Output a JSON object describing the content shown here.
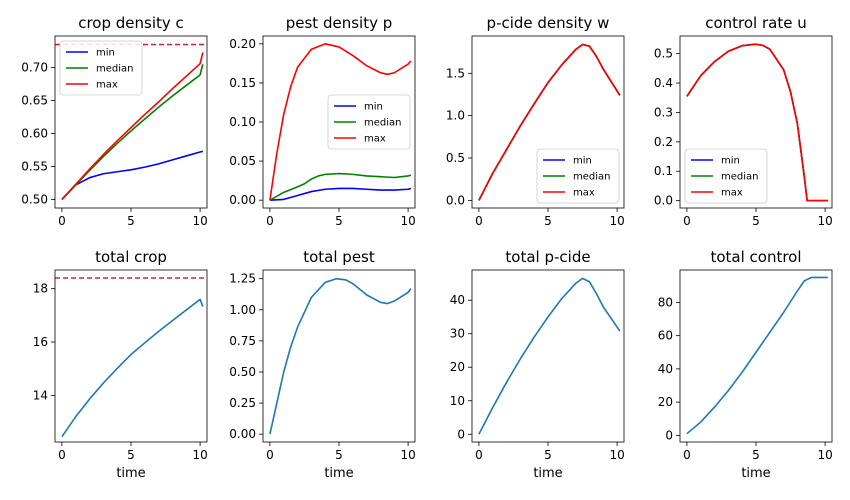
{
  "chart_data": [
    {
      "type": "line",
      "title": "crop density c",
      "xlabel": "",
      "xlim": [
        -0.5,
        10.5
      ],
      "ylim": [
        0.487,
        0.748
      ],
      "xticks": [
        0,
        5,
        10
      ],
      "yticks": [
        0.5,
        0.55,
        0.6,
        0.65,
        0.7
      ],
      "ytick_labels": [
        "0.50",
        "0.55",
        "0.60",
        "0.65",
        "0.70"
      ],
      "legend": "upper-left",
      "hline": {
        "y": 0.735,
        "color": "#d62728",
        "style": "dashed"
      },
      "series": [
        {
          "name": "min",
          "color": "#0000ff",
          "x": [
            0,
            1,
            2,
            3,
            4,
            5,
            6,
            7,
            8,
            9,
            10,
            10.2
          ],
          "y": [
            0.5,
            0.522,
            0.533,
            0.539,
            0.542,
            0.545,
            0.549,
            0.554,
            0.56,
            0.566,
            0.572,
            0.573
          ]
        },
        {
          "name": "median",
          "color": "#008000",
          "x": [
            0,
            1,
            2,
            3,
            4,
            5,
            6,
            7,
            8,
            9,
            10,
            10.2
          ],
          "y": [
            0.5,
            0.522,
            0.544,
            0.565,
            0.585,
            0.604,
            0.622,
            0.64,
            0.657,
            0.673,
            0.689,
            0.705
          ]
        },
        {
          "name": "max",
          "color": "#ff0000",
          "x": [
            0,
            1,
            2,
            3,
            4,
            5,
            6,
            7,
            8,
            9,
            10,
            10.2
          ],
          "y": [
            0.5,
            0.523,
            0.546,
            0.568,
            0.589,
            0.609,
            0.629,
            0.648,
            0.668,
            0.687,
            0.706,
            0.723
          ]
        }
      ]
    },
    {
      "type": "line",
      "title": "pest density p",
      "xlabel": "",
      "xlim": [
        -0.5,
        10.5
      ],
      "ylim": [
        -0.01,
        0.21
      ],
      "xticks": [
        0,
        5,
        10
      ],
      "yticks": [
        0.0,
        0.05,
        0.1,
        0.15,
        0.2
      ],
      "ytick_labels": [
        "0.00",
        "0.05",
        "0.10",
        "0.15",
        "0.20"
      ],
      "legend": "center-right",
      "series": [
        {
          "name": "min",
          "color": "#0000ff",
          "x": [
            0,
            1,
            2,
            3,
            4,
            5,
            6,
            7,
            8,
            9,
            10,
            10.2
          ],
          "y": [
            0,
            0.001,
            0.006,
            0.011,
            0.014,
            0.015,
            0.015,
            0.014,
            0.013,
            0.013,
            0.014,
            0.015
          ]
        },
        {
          "name": "median",
          "color": "#008000",
          "x": [
            0,
            1,
            2,
            2.5,
            3,
            3.5,
            4,
            5,
            6,
            7,
            8,
            9,
            10,
            10.2
          ],
          "y": [
            0,
            0.01,
            0.017,
            0.021,
            0.027,
            0.031,
            0.033,
            0.034,
            0.033,
            0.031,
            0.03,
            0.029,
            0.031,
            0.032
          ]
        },
        {
          "name": "max",
          "color": "#ff0000",
          "x": [
            0,
            0.5,
            1,
            1.5,
            2,
            3,
            4,
            5,
            6,
            7,
            8,
            8.5,
            9,
            10,
            10.2
          ],
          "y": [
            0,
            0.06,
            0.11,
            0.145,
            0.17,
            0.193,
            0.2,
            0.196,
            0.185,
            0.172,
            0.163,
            0.161,
            0.163,
            0.174,
            0.178
          ]
        }
      ]
    },
    {
      "type": "line",
      "title": "p-cide density w",
      "xlabel": "",
      "xlim": [
        -0.5,
        10.5
      ],
      "ylim": [
        -0.09,
        1.94
      ],
      "xticks": [
        0,
        5,
        10
      ],
      "yticks": [
        0.0,
        0.5,
        1.0,
        1.5
      ],
      "ytick_labels": [
        "0.0",
        "0.5",
        "1.0",
        "1.5"
      ],
      "legend": "lower-right",
      "series": [
        {
          "name": "min",
          "color": "#0000ff",
          "x": [
            0,
            1,
            2,
            3,
            4,
            5,
            6,
            7,
            7.5,
            8,
            8.5,
            9,
            9.5,
            10.2
          ],
          "y": [
            0,
            0.32,
            0.6,
            0.88,
            1.14,
            1.39,
            1.6,
            1.78,
            1.84,
            1.82,
            1.7,
            1.55,
            1.42,
            1.24
          ]
        },
        {
          "name": "median",
          "color": "#008000",
          "x": [
            0,
            1,
            2,
            3,
            4,
            5,
            6,
            7,
            7.5,
            8,
            8.5,
            9,
            9.5,
            10.2
          ],
          "y": [
            0,
            0.32,
            0.6,
            0.88,
            1.14,
            1.39,
            1.6,
            1.78,
            1.84,
            1.82,
            1.7,
            1.55,
            1.42,
            1.24
          ]
        },
        {
          "name": "max",
          "color": "#ff0000",
          "x": [
            0,
            1,
            2,
            3,
            4,
            5,
            6,
            7,
            7.5,
            8,
            8.5,
            9,
            9.5,
            10.2
          ],
          "y": [
            0,
            0.32,
            0.6,
            0.88,
            1.14,
            1.39,
            1.6,
            1.78,
            1.84,
            1.82,
            1.7,
            1.55,
            1.42,
            1.24
          ]
        }
      ]
    },
    {
      "type": "line",
      "title": "control rate u",
      "xlabel": "",
      "xlim": [
        -0.5,
        10.5
      ],
      "ylim": [
        -0.025,
        0.56
      ],
      "xticks": [
        0,
        5,
        10
      ],
      "yticks": [
        0.0,
        0.1,
        0.2,
        0.3,
        0.4,
        0.5
      ],
      "ytick_labels": [
        "0.0",
        "0.1",
        "0.2",
        "0.3",
        "0.4",
        "0.5"
      ],
      "legend": "lower-left",
      "series": [
        {
          "name": "min",
          "color": "#0000ff",
          "x": [
            0,
            1,
            2,
            3,
            4,
            5,
            5.5,
            6,
            7,
            7.5,
            8,
            8.5,
            8.7,
            9,
            10.2
          ],
          "y": [
            0.355,
            0.425,
            0.473,
            0.508,
            0.527,
            0.532,
            0.528,
            0.515,
            0.445,
            0.37,
            0.26,
            0.08,
            0,
            0,
            0
          ]
        },
        {
          "name": "median",
          "color": "#008000",
          "x": [
            0,
            1,
            2,
            3,
            4,
            5,
            5.5,
            6,
            7,
            7.5,
            8,
            8.5,
            8.7,
            9,
            10.2
          ],
          "y": [
            0.355,
            0.425,
            0.473,
            0.508,
            0.527,
            0.532,
            0.528,
            0.515,
            0.445,
            0.37,
            0.26,
            0.08,
            0,
            0,
            0
          ]
        },
        {
          "name": "max",
          "color": "#ff0000",
          "x": [
            0,
            1,
            2,
            3,
            4,
            5,
            5.5,
            6,
            7,
            7.5,
            8,
            8.5,
            8.7,
            9,
            10.2
          ],
          "y": [
            0.355,
            0.425,
            0.473,
            0.508,
            0.527,
            0.532,
            0.528,
            0.515,
            0.445,
            0.37,
            0.26,
            0.08,
            0,
            0,
            0
          ]
        }
      ]
    },
    {
      "type": "line",
      "title": "total crop",
      "xlabel": "time",
      "xlim": [
        -0.5,
        10.5
      ],
      "ylim": [
        12.25,
        18.7
      ],
      "xticks": [
        0,
        5,
        10
      ],
      "yticks": [
        14,
        16,
        18
      ],
      "ytick_labels": [
        "14",
        "16",
        "18"
      ],
      "legend": "none",
      "hline": {
        "y": 18.4,
        "color": "#d62728",
        "style": "dashed"
      },
      "series": [
        {
          "color": "#1f77b4",
          "x": [
            0,
            1,
            2,
            3,
            4,
            5,
            6,
            7,
            8,
            9,
            10,
            10.2
          ],
          "y": [
            12.45,
            13.2,
            13.86,
            14.46,
            15.01,
            15.53,
            15.97,
            16.4,
            16.8,
            17.2,
            17.6,
            17.33
          ]
        }
      ]
    },
    {
      "type": "line",
      "title": "total pest",
      "xlabel": "time",
      "xlim": [
        -0.5,
        10.5
      ],
      "ylim": [
        -0.063,
        1.32
      ],
      "xticks": [
        0,
        5,
        10
      ],
      "yticks": [
        0.0,
        0.25,
        0.5,
        0.75,
        1.0,
        1.25
      ],
      "ytick_labels": [
        "0.00",
        "0.25",
        "0.50",
        "0.75",
        "1.00",
        "1.25"
      ],
      "legend": "none",
      "series": [
        {
          "color": "#1f77b4",
          "x": [
            0,
            0.5,
            1,
            1.5,
            2,
            3,
            4,
            4.8,
            5.5,
            6,
            7,
            8,
            8.5,
            9,
            10,
            10.2
          ],
          "y": [
            0,
            0.25,
            0.5,
            0.7,
            0.86,
            1.1,
            1.22,
            1.25,
            1.24,
            1.21,
            1.12,
            1.06,
            1.05,
            1.07,
            1.14,
            1.17
          ]
        }
      ]
    },
    {
      "type": "line",
      "title": "total p-cide",
      "xlabel": "time",
      "xlim": [
        -0.5,
        10.5
      ],
      "ylim": [
        -2.3,
        49.0
      ],
      "xticks": [
        0,
        5,
        10
      ],
      "yticks": [
        0,
        10,
        20,
        30,
        40
      ],
      "ytick_labels": [
        "0",
        "10",
        "20",
        "30",
        "40"
      ],
      "legend": "none",
      "series": [
        {
          "color": "#1f77b4",
          "x": [
            0,
            1,
            2,
            3,
            4,
            5,
            6,
            7,
            7.5,
            8,
            8.5,
            9,
            9.5,
            10.2
          ],
          "y": [
            0,
            8,
            15.5,
            22.5,
            29,
            35,
            40.5,
            45,
            46.5,
            45.5,
            42,
            38,
            35,
            30.8
          ]
        }
      ]
    },
    {
      "type": "line",
      "title": "total control",
      "xlabel": "time",
      "xlim": [
        -0.5,
        10.5
      ],
      "ylim": [
        -4,
        99.5
      ],
      "xticks": [
        0,
        5,
        10
      ],
      "yticks": [
        0,
        20,
        40,
        60,
        80
      ],
      "ytick_labels": [
        "0",
        "20",
        "40",
        "60",
        "80"
      ],
      "legend": "none",
      "series": [
        {
          "color": "#1f77b4",
          "x": [
            0,
            1,
            2,
            3,
            4,
            5,
            6,
            7,
            8,
            8.5,
            9,
            10,
            10.2
          ],
          "y": [
            1,
            8,
            17,
            27,
            38,
            50,
            62,
            74,
            87,
            93,
            95,
            95,
            95
          ]
        }
      ]
    }
  ]
}
